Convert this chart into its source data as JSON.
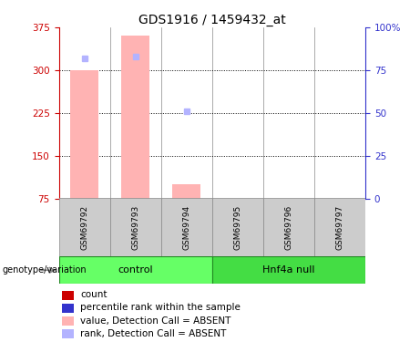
{
  "title": "GDS1916 / 1459432_at",
  "samples": [
    "GSM69792",
    "GSM69793",
    "GSM69794",
    "GSM69795",
    "GSM69796",
    "GSM69797"
  ],
  "groups": [
    "control",
    "control",
    "control",
    "Hnf4a null",
    "Hnf4a null",
    "Hnf4a null"
  ],
  "ylim_left": [
    75,
    375
  ],
  "ylim_right": [
    0,
    100
  ],
  "yticks_left": [
    75,
    150,
    225,
    300,
    375
  ],
  "yticks_right": [
    0,
    25,
    50,
    75,
    100
  ],
  "bar_values": [
    300,
    360,
    100,
    0,
    0,
    0
  ],
  "rank_values": [
    82,
    83,
    51,
    0,
    0,
    0
  ],
  "bar_color": "#ffb3b3",
  "rank_color": "#b3b3ff",
  "count_color": "#cc0000",
  "percentile_color": "#3333cc",
  "bar_width": 0.55,
  "rank_marker_size": 5,
  "dotted_yticks": [
    150,
    225,
    300
  ],
  "group_colors": {
    "control": "#66ff66",
    "Hnf4a null": "#44dd44"
  },
  "group_label": "genotype/variation",
  "legend_items": [
    {
      "label": "count",
      "color": "#cc0000"
    },
    {
      "label": "percentile rank within the sample",
      "color": "#3333cc"
    },
    {
      "label": "value, Detection Call = ABSENT",
      "color": "#ffb3b3"
    },
    {
      "label": "rank, Detection Call = ABSENT",
      "color": "#b3b3ff"
    }
  ],
  "left_axis_color": "#cc0000",
  "right_axis_color": "#3333cc",
  "background_color": "#ffffff"
}
